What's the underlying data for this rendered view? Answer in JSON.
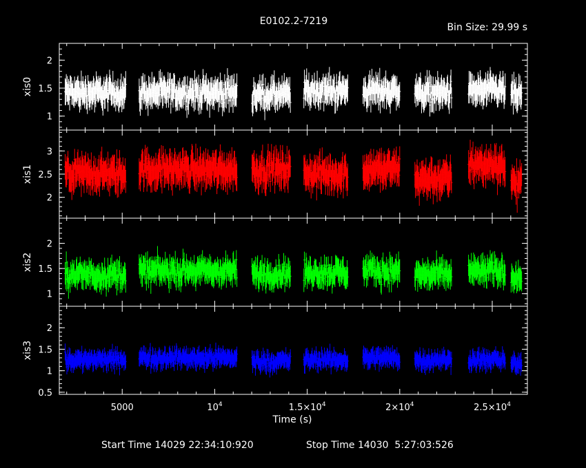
{
  "title": "E0102.2-7219",
  "bin_size": "Bin Size: 29.99 s",
  "xlabel": "Time (s)",
  "start_time": "Start Time 14029 22:34:10:920",
  "stop_time": "Stop Time 14030  5:27:03:526",
  "x_ticks": [
    {
      "v": 5000,
      "label": "5000"
    },
    {
      "v": 10000,
      "label": "10",
      "sup": "4"
    },
    {
      "v": 15000,
      "label": "1.5×10",
      "sup": "4"
    },
    {
      "v": 20000,
      "label": "2×10",
      "sup": "4"
    },
    {
      "v": 25000,
      "label": "2.5×10",
      "sup": "4"
    }
  ],
  "chart_data": {
    "type": "scatter",
    "xlabel": "Time (s)",
    "xlim": [
      1600,
      26900
    ],
    "segments": [
      [
        1900,
        5200
      ],
      [
        5900,
        11200
      ],
      [
        12000,
        14100
      ],
      [
        14800,
        17200
      ],
      [
        18000,
        20000
      ],
      [
        20800,
        22800
      ],
      [
        23700,
        25700
      ],
      [
        26000,
        26600
      ]
    ],
    "panels": [
      {
        "name": "xis0",
        "color": "#ffffff",
        "ylim": [
          0.75,
          2.3
        ],
        "yticks": [
          1,
          1.5,
          2
        ],
        "mean": 1.4,
        "spread": 0.16,
        "err": 0.2,
        "series_values_by_segment": [
          1.42,
          1.42,
          1.38,
          1.45,
          1.45,
          1.42,
          1.45,
          1.38
        ]
      },
      {
        "name": "xis1",
        "color": "#ff0000",
        "ylim": [
          1.55,
          3.45
        ],
        "yticks": [
          2,
          2.5,
          3
        ],
        "mean": 2.55,
        "spread": 0.22,
        "err": 0.28,
        "series_values_by_segment": [
          2.5,
          2.6,
          2.6,
          2.5,
          2.6,
          2.4,
          2.7,
          2.3
        ]
      },
      {
        "name": "xis2",
        "color": "#00ff00",
        "ylim": [
          0.75,
          2.5
        ],
        "yticks": [
          1,
          1.5,
          2
        ],
        "mean": 1.4,
        "spread": 0.17,
        "err": 0.2,
        "series_values_by_segment": [
          1.38,
          1.45,
          1.4,
          1.42,
          1.45,
          1.38,
          1.45,
          1.35
        ]
      },
      {
        "name": "xis3",
        "color": "#0000ff",
        "ylim": [
          0.45,
          2.5
        ],
        "yticks": [
          0.5,
          1,
          1.5,
          2
        ],
        "mean": 1.25,
        "spread": 0.13,
        "err": 0.17,
        "series_values_by_segment": [
          1.25,
          1.3,
          1.22,
          1.25,
          1.3,
          1.25,
          1.25,
          1.15
        ]
      }
    ]
  }
}
